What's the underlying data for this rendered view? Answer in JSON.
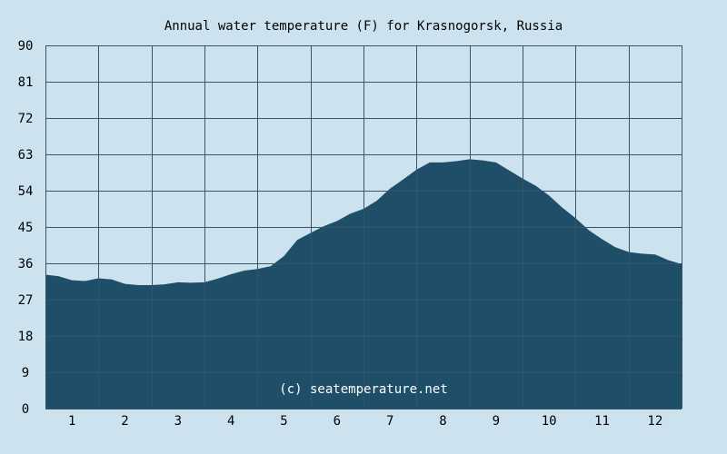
{
  "chart_data": {
    "type": "area",
    "title": "Annual water temperature (F) for Krasnogorsk, Russia",
    "xlabel": "",
    "ylabel": "",
    "x_ticks": [
      "1",
      "2",
      "3",
      "4",
      "5",
      "6",
      "7",
      "8",
      "9",
      "10",
      "11",
      "12"
    ],
    "y_ticks": [
      "0",
      "9",
      "18",
      "27",
      "36",
      "45",
      "54",
      "63",
      "72",
      "81",
      "90"
    ],
    "ylim": [
      0,
      90
    ],
    "xlim": [
      0.5,
      12.5
    ],
    "grid": true,
    "fill_color": "#1f4e68",
    "background_color": "#cce3ef",
    "grid_color": "#36556a",
    "watermark": "(c) seatemperature.net",
    "series": [
      {
        "x": [
          0.5,
          0.75,
          1.0,
          1.25,
          1.5,
          1.75,
          2.0,
          2.25,
          2.5,
          2.75,
          3.0,
          3.25,
          3.5,
          3.75,
          4.0,
          4.25,
          4.5,
          4.75,
          5.0,
          5.25,
          5.5,
          5.75,
          6.0,
          6.25,
          6.5,
          6.75,
          7.0,
          7.25,
          7.5,
          7.75,
          8.0,
          8.25,
          8.5,
          8.75,
          9.0,
          9.25,
          9.5,
          9.75,
          10.0,
          10.25,
          10.5,
          10.75,
          11.0,
          11.25,
          11.5,
          11.75,
          12.0,
          12.25,
          12.5
        ],
        "values": [
          33.2,
          32.8,
          31.8,
          31.6,
          32.3,
          32.0,
          30.9,
          30.6,
          30.6,
          30.8,
          31.3,
          31.2,
          31.3,
          32.2,
          33.3,
          34.2,
          34.6,
          35.3,
          37.8,
          41.8,
          43.5,
          45.2,
          46.5,
          48.3,
          49.5,
          51.5,
          54.5,
          56.8,
          59.2,
          61.0,
          61.0,
          61.3,
          61.8,
          61.5,
          61.0,
          59.0,
          57.0,
          55.2,
          52.8,
          49.8,
          47.2,
          44.2,
          42.0,
          40.0,
          38.8,
          38.4,
          38.2,
          36.8,
          35.8
        ]
      }
    ]
  }
}
